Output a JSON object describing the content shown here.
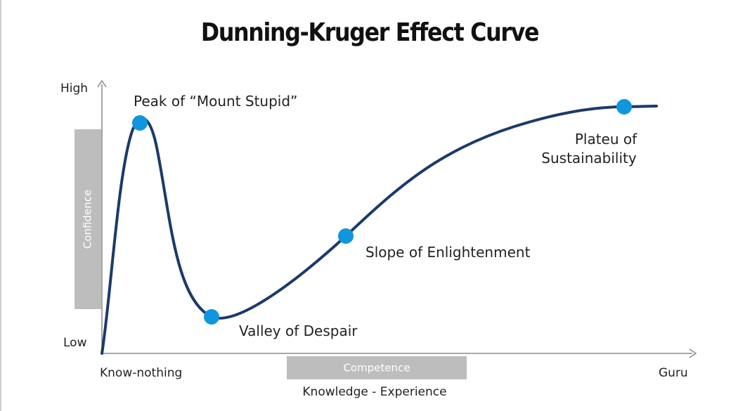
{
  "title": "Dunning-Kruger Effect Curve",
  "y_axis": {
    "high_label": "High",
    "low_label": "Low",
    "band_label": "Confidence"
  },
  "x_axis": {
    "start_label": "Know-nothing",
    "end_label": "Guru",
    "band_label": "Competence",
    "caption": "Knowledge - Experience"
  },
  "stages": [
    {
      "label_lines": [
        "Peak of “Mount Stupid”"
      ]
    },
    {
      "label_lines": [
        "Valley of Despair"
      ]
    },
    {
      "label_lines": [
        "Slope of Enlightenment"
      ]
    },
    {
      "label_lines": [
        "Plateu of",
        "Sustainability"
      ]
    }
  ],
  "colors": {
    "curve": "#1b3a6b",
    "markers": "#0f96de",
    "axes": "#8a8a8a",
    "bands": "#bdbdbd"
  }
}
